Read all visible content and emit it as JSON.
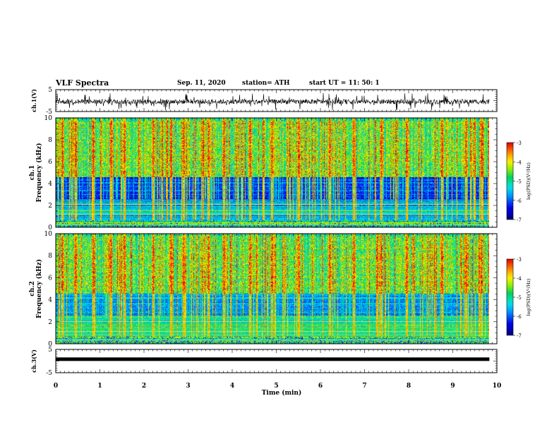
{
  "header": {
    "title": "VLF Spectra",
    "date": "Sep. 11, 2020",
    "station": "station= ATH",
    "start": "start  UT =   11: 50: 1"
  },
  "chart_data": [
    {
      "type": "line",
      "panel": "ch1-waveform",
      "ylabel": "ch.1(V)",
      "ylim": [
        -5,
        5
      ],
      "yticks": [
        "5",
        "-5"
      ],
      "xlim": [
        0,
        10
      ],
      "baseline": -0.5,
      "data_xmax": 9.83
    },
    {
      "type": "heatmap",
      "panel": "ch1-spectrogram",
      "ylabel": "ch.1 Frequency (kHz)",
      "ylim": [
        0,
        10
      ],
      "yticks": [
        "0",
        "2",
        "4",
        "6",
        "8",
        "10"
      ],
      "xlim": [
        0,
        10
      ],
      "data_xmax": 9.83,
      "colorbar": {
        "label": "log(PSD)(V²/Hz)",
        "range": [
          -7,
          -3
        ],
        "ticks": [
          "-3",
          "-4",
          "-5",
          "-6",
          "-7"
        ]
      },
      "strong_sferics_min": [
        0.15,
        0.45,
        0.85,
        1.25,
        1.55,
        2.2,
        2.6,
        2.9,
        3.45,
        3.8,
        4.4,
        4.9,
        5.5,
        6.2,
        6.75,
        7.38,
        7.95,
        8.75,
        9.3,
        9.65
      ]
    },
    {
      "type": "heatmap",
      "panel": "ch2-spectrogram",
      "ylabel": "ch.2 Frequency (kHz)",
      "ylim": [
        0,
        10
      ],
      "yticks": [
        "0",
        "2",
        "4",
        "6",
        "8",
        "10"
      ],
      "xlim": [
        0,
        10
      ],
      "data_xmax": 9.83,
      "colorbar": {
        "label": "log(PSD)(V²/Hz)",
        "range": [
          -7,
          -3
        ],
        "ticks": [
          "-3",
          "-4",
          "-5",
          "-6",
          "-7"
        ]
      },
      "strong_sferics_min": [
        0.15,
        0.45,
        0.85,
        1.25,
        1.55,
        2.2,
        2.6,
        2.9,
        3.45,
        3.8,
        4.4,
        4.9,
        5.5,
        6.2,
        6.75,
        7.38,
        7.95,
        8.75,
        9.3,
        9.65
      ]
    },
    {
      "type": "line",
      "panel": "ch3-waveform",
      "ylabel": "ch.3(V)",
      "ylim": [
        -5,
        5
      ],
      "yticks": [
        "5",
        "-5"
      ],
      "xlim": [
        0,
        10
      ],
      "baseline": 0.8,
      "data_xmax": 9.83
    }
  ],
  "xaxis": {
    "label": "Time  (min)",
    "ticks": [
      "0",
      "1",
      "2",
      "3",
      "4",
      "5",
      "6",
      "7",
      "8",
      "9",
      "10"
    ]
  }
}
